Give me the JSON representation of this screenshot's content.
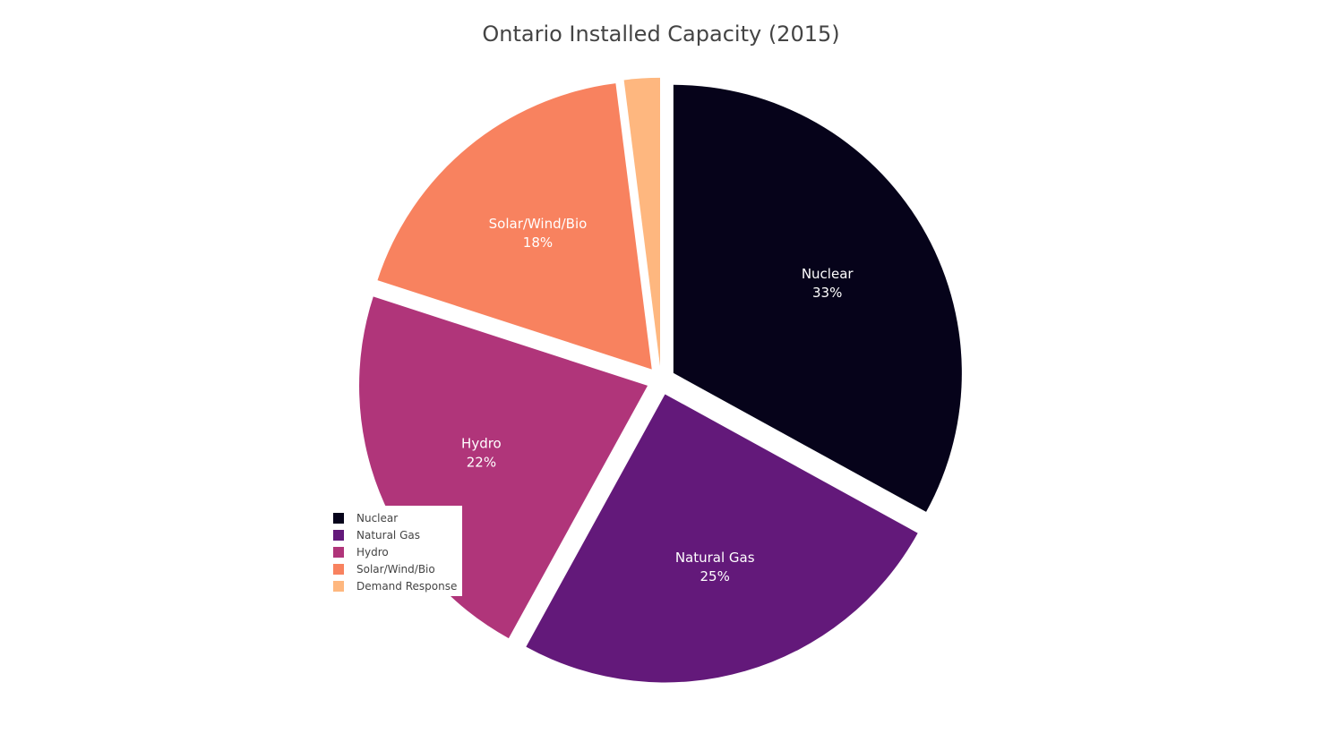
{
  "chart_data": {
    "type": "pie",
    "title": "Ontario Installed Capacity (2015)",
    "labels": [
      "Nuclear",
      "Natural Gas",
      "Hydro",
      "Solar/Wind/Bio",
      "Demand Response"
    ],
    "values": [
      33,
      25,
      22,
      18,
      2
    ],
    "percent_labels": [
      "33%",
      "25%",
      "22%",
      "18%",
      ""
    ],
    "colors": [
      "#06031a",
      "#63197a",
      "#b0357a",
      "#f8825f",
      "#feb77f"
    ],
    "pull": [
      0.03,
      0.03,
      0.03,
      0.03,
      0.03
    ],
    "sort": "descending",
    "direction": "clockwise",
    "rotation": "start at 12 o'clock",
    "legend_position": "bottom-left"
  }
}
